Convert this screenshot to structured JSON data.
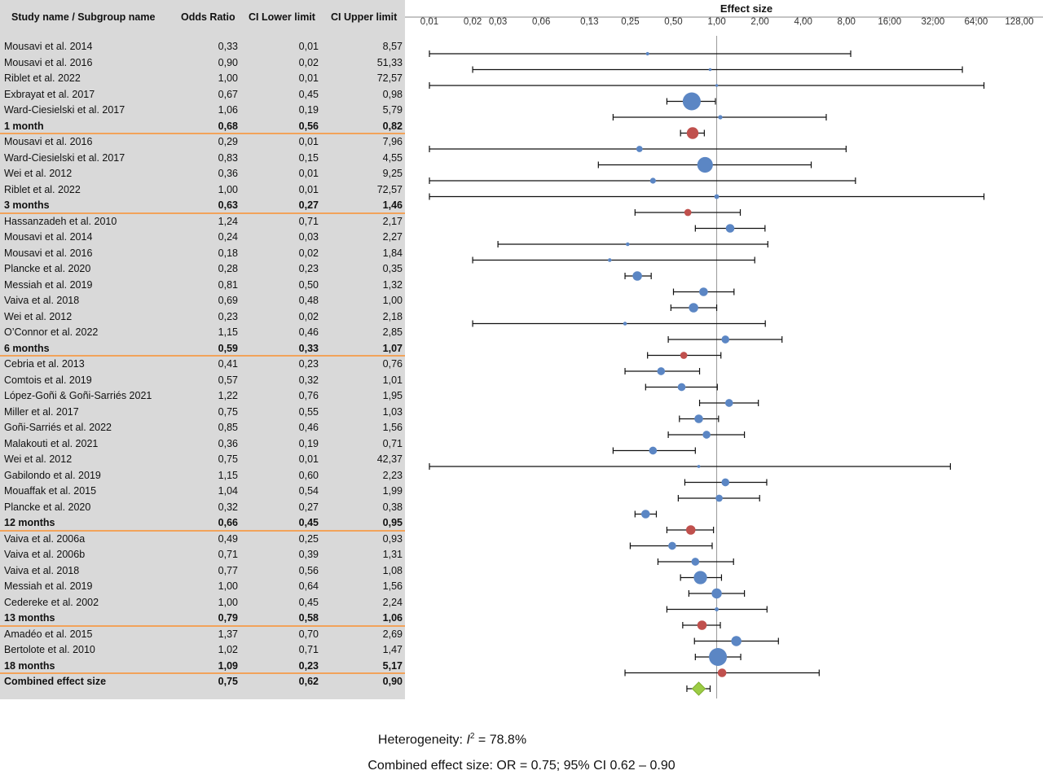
{
  "table": {
    "headers": [
      "Study name / Subgroup name",
      "Odds Ratio",
      "CI Lower limit",
      "CI Upper limit"
    ],
    "rows": [
      {
        "name": "Mousavi et al. 2014",
        "or": "0,33",
        "lo": "0,01",
        "hi": "8,57",
        "kind": "study"
      },
      {
        "name": "Mousavi et al. 2016",
        "or": "0,90",
        "lo": "0,02",
        "hi": "51,33",
        "kind": "study"
      },
      {
        "name": "Riblet et al. 2022",
        "or": "1,00",
        "lo": "0,01",
        "hi": "72,57",
        "kind": "study"
      },
      {
        "name": "Exbrayat et al. 2017",
        "or": "0,67",
        "lo": "0,45",
        "hi": "0,98",
        "kind": "study"
      },
      {
        "name": "Ward-Ciesielski et al. 2017",
        "or": "1,06",
        "lo": "0,19",
        "hi": "5,79",
        "kind": "study"
      },
      {
        "name": "1 month",
        "or": "0,68",
        "lo": "0,56",
        "hi": "0,82",
        "kind": "subgroup"
      },
      {
        "name": "Mousavi et al. 2016",
        "or": "0,29",
        "lo": "0,01",
        "hi": "7,96",
        "kind": "study"
      },
      {
        "name": "Ward-Ciesielski et al. 2017",
        "or": "0,83",
        "lo": "0,15",
        "hi": "4,55",
        "kind": "study"
      },
      {
        "name": "Wei et al. 2012",
        "or": "0,36",
        "lo": "0,01",
        "hi": "9,25",
        "kind": "study"
      },
      {
        "name": "Riblet et al. 2022",
        "or": "1,00",
        "lo": "0,01",
        "hi": "72,57",
        "kind": "study"
      },
      {
        "name": "3 months",
        "or": "0,63",
        "lo": "0,27",
        "hi": "1,46",
        "kind": "subgroup"
      },
      {
        "name": "Hassanzadeh et al. 2010",
        "or": "1,24",
        "lo": "0,71",
        "hi": "2,17",
        "kind": "study"
      },
      {
        "name": "Mousavi et al. 2014",
        "or": "0,24",
        "lo": "0,03",
        "hi": "2,27",
        "kind": "study"
      },
      {
        "name": "Mousavi et al. 2016",
        "or": "0,18",
        "lo": "0,02",
        "hi": "1,84",
        "kind": "study"
      },
      {
        "name": "Plancke et al. 2020",
        "or": "0,28",
        "lo": "0,23",
        "hi": "0,35",
        "kind": "study"
      },
      {
        "name": "Messiah et al. 2019",
        "or": "0,81",
        "lo": "0,50",
        "hi": "1,32",
        "kind": "study"
      },
      {
        "name": "Vaiva et al. 2018",
        "or": "0,69",
        "lo": "0,48",
        "hi": "1,00",
        "kind": "study"
      },
      {
        "name": "Wei et al. 2012",
        "or": "0,23",
        "lo": "0,02",
        "hi": "2,18",
        "kind": "study"
      },
      {
        "name": "O’Connor et al. 2022",
        "or": "1,15",
        "lo": "0,46",
        "hi": "2,85",
        "kind": "study"
      },
      {
        "name": "6 months",
        "or": "0,59",
        "lo": "0,33",
        "hi": "1,07",
        "kind": "subgroup"
      },
      {
        "name": "Cebria et al. 2013",
        "or": "0,41",
        "lo": "0,23",
        "hi": "0,76",
        "kind": "study"
      },
      {
        "name": "Comtois et al. 2019",
        "or": "0,57",
        "lo": "0,32",
        "hi": "1,01",
        "kind": "study"
      },
      {
        "name": "López-Goñi & Goñi-Sarriés 2021",
        "or": "1,22",
        "lo": "0,76",
        "hi": "1,95",
        "kind": "study"
      },
      {
        "name": "Miller et al. 2017",
        "or": "0,75",
        "lo": "0,55",
        "hi": "1,03",
        "kind": "study"
      },
      {
        "name": "Goñi-Sarriés et al. 2022",
        "or": "0,85",
        "lo": "0,46",
        "hi": "1,56",
        "kind": "study"
      },
      {
        "name": "Malakouti et al. 2021",
        "or": "0,36",
        "lo": "0,19",
        "hi": "0,71",
        "kind": "study"
      },
      {
        "name": "Wei et al. 2012",
        "or": "0,75",
        "lo": "0,01",
        "hi": "42,37",
        "kind": "study"
      },
      {
        "name": "Gabilondo et al. 2019",
        "or": "1,15",
        "lo": "0,60",
        "hi": "2,23",
        "kind": "study"
      },
      {
        "name": "Mouaffak et al. 2015",
        "or": "1,04",
        "lo": "0,54",
        "hi": "1,99",
        "kind": "study"
      },
      {
        "name": "Plancke et al. 2020",
        "or": "0,32",
        "lo": "0,27",
        "hi": "0,38",
        "kind": "study"
      },
      {
        "name": "12 months",
        "or": "0,66",
        "lo": "0,45",
        "hi": "0,95",
        "kind": "subgroup"
      },
      {
        "name": "Vaiva et al. 2006a",
        "or": "0,49",
        "lo": "0,25",
        "hi": "0,93",
        "kind": "study"
      },
      {
        "name": "Vaiva et al. 2006b",
        "or": "0,71",
        "lo": "0,39",
        "hi": "1,31",
        "kind": "study"
      },
      {
        "name": "Vaiva et al. 2018",
        "or": "0,77",
        "lo": "0,56",
        "hi": "1,08",
        "kind": "study"
      },
      {
        "name": "Messiah et al. 2019",
        "or": "1,00",
        "lo": "0,64",
        "hi": "1,56",
        "kind": "study"
      },
      {
        "name": "Cedereke et al. 2002",
        "or": "1,00",
        "lo": "0,45",
        "hi": "2,24",
        "kind": "study"
      },
      {
        "name": "13 months",
        "or": "0,79",
        "lo": "0,58",
        "hi": "1,06",
        "kind": "subgroup"
      },
      {
        "name": "Amadéo et al. 2015",
        "or": "1,37",
        "lo": "0,70",
        "hi": "2,69",
        "kind": "study"
      },
      {
        "name": "Bertolote et al. 2010",
        "or": "1,02",
        "lo": "0,71",
        "hi": "1,47",
        "kind": "study"
      },
      {
        "name": "18 months",
        "or": "1,09",
        "lo": "0,23",
        "hi": "5,17",
        "kind": "subgroup"
      },
      {
        "name": "Combined effect size",
        "or": "0,75",
        "lo": "0,62",
        "hi": "0,90",
        "kind": "combined"
      }
    ]
  },
  "chart_data": {
    "type": "forest",
    "title": "Effect size",
    "x_scale": "log2",
    "xlim": [
      0.01,
      128
    ],
    "x_ticks": [
      0.01,
      0.02,
      0.03,
      0.06,
      0.13,
      0.25,
      0.5,
      1,
      2,
      4,
      8,
      16,
      32,
      64,
      128
    ],
    "x_tick_labels": [
      "0,01",
      "0,02",
      "0,03",
      "0,06",
      "0,13",
      "0,25",
      "0,50",
      "1,00",
      "2,00",
      "4,00",
      "8,00",
      "16,00",
      "32,00",
      "64,00",
      "128,00"
    ],
    "reference_line": 1,
    "colors": {
      "study": "#5b86c4",
      "subgroup": "#c0504d",
      "combined": "#9ccc45",
      "ci": "#111111",
      "ref": "#999999"
    },
    "points": [
      {
        "or": 0.33,
        "lo": 0.01,
        "hi": 8.57,
        "kind": "study",
        "weight": 0.06
      },
      {
        "or": 0.9,
        "lo": 0.02,
        "hi": 51.33,
        "kind": "study",
        "weight": 0.03
      },
      {
        "or": 1.0,
        "lo": 0.01,
        "hi": 72.57,
        "kind": "study",
        "weight": 0.02
      },
      {
        "or": 0.67,
        "lo": 0.45,
        "hi": 0.98,
        "kind": "study",
        "weight": 1.0
      },
      {
        "or": 1.06,
        "lo": 0.19,
        "hi": 5.79,
        "kind": "study",
        "weight": 0.12
      },
      {
        "or": 0.68,
        "lo": 0.56,
        "hi": 0.82,
        "kind": "subgroup",
        "weight": 0.6
      },
      {
        "or": 0.29,
        "lo": 0.01,
        "hi": 7.96,
        "kind": "study",
        "weight": 0.25
      },
      {
        "or": 0.83,
        "lo": 0.15,
        "hi": 4.55,
        "kind": "study",
        "weight": 0.85
      },
      {
        "or": 0.36,
        "lo": 0.01,
        "hi": 9.25,
        "kind": "study",
        "weight": 0.22
      },
      {
        "or": 1.0,
        "lo": 0.01,
        "hi": 72.57,
        "kind": "study",
        "weight": 0.15
      },
      {
        "or": 0.63,
        "lo": 0.27,
        "hi": 1.46,
        "kind": "subgroup",
        "weight": 0.3
      },
      {
        "or": 1.24,
        "lo": 0.71,
        "hi": 2.17,
        "kind": "study",
        "weight": 0.4
      },
      {
        "or": 0.24,
        "lo": 0.03,
        "hi": 2.27,
        "kind": "study",
        "weight": 0.08
      },
      {
        "or": 0.18,
        "lo": 0.02,
        "hi": 1.84,
        "kind": "study",
        "weight": 0.08
      },
      {
        "or": 0.28,
        "lo": 0.23,
        "hi": 0.35,
        "kind": "study",
        "weight": 0.45
      },
      {
        "or": 0.81,
        "lo": 0.5,
        "hi": 1.32,
        "kind": "study",
        "weight": 0.4
      },
      {
        "or": 0.69,
        "lo": 0.48,
        "hi": 1.0,
        "kind": "study",
        "weight": 0.45
      },
      {
        "or": 0.23,
        "lo": 0.02,
        "hi": 2.18,
        "kind": "study",
        "weight": 0.08
      },
      {
        "or": 1.15,
        "lo": 0.46,
        "hi": 2.85,
        "kind": "study",
        "weight": 0.35
      },
      {
        "or": 0.59,
        "lo": 0.33,
        "hi": 1.07,
        "kind": "subgroup",
        "weight": 0.3
      },
      {
        "or": 0.41,
        "lo": 0.23,
        "hi": 0.76,
        "kind": "study",
        "weight": 0.35
      },
      {
        "or": 0.57,
        "lo": 0.32,
        "hi": 1.01,
        "kind": "study",
        "weight": 0.35
      },
      {
        "or": 1.22,
        "lo": 0.76,
        "hi": 1.95,
        "kind": "study",
        "weight": 0.35
      },
      {
        "or": 0.75,
        "lo": 0.55,
        "hi": 1.03,
        "kind": "study",
        "weight": 0.4
      },
      {
        "or": 0.85,
        "lo": 0.46,
        "hi": 1.56,
        "kind": "study",
        "weight": 0.35
      },
      {
        "or": 0.36,
        "lo": 0.19,
        "hi": 0.71,
        "kind": "study",
        "weight": 0.35
      },
      {
        "or": 0.75,
        "lo": 0.01,
        "hi": 42.37,
        "kind": "study",
        "weight": 0.04
      },
      {
        "or": 1.15,
        "lo": 0.6,
        "hi": 2.23,
        "kind": "study",
        "weight": 0.35
      },
      {
        "or": 1.04,
        "lo": 0.54,
        "hi": 1.99,
        "kind": "study",
        "weight": 0.3
      },
      {
        "or": 0.32,
        "lo": 0.27,
        "hi": 0.38,
        "kind": "study",
        "weight": 0.4
      },
      {
        "or": 0.66,
        "lo": 0.45,
        "hi": 0.95,
        "kind": "subgroup",
        "weight": 0.45
      },
      {
        "or": 0.49,
        "lo": 0.25,
        "hi": 0.93,
        "kind": "study",
        "weight": 0.35
      },
      {
        "or": 0.71,
        "lo": 0.39,
        "hi": 1.31,
        "kind": "study",
        "weight": 0.35
      },
      {
        "or": 0.77,
        "lo": 0.56,
        "hi": 1.08,
        "kind": "study",
        "weight": 0.7
      },
      {
        "or": 1.0,
        "lo": 0.64,
        "hi": 1.56,
        "kind": "study",
        "weight": 0.5
      },
      {
        "or": 1.0,
        "lo": 0.45,
        "hi": 2.24,
        "kind": "study",
        "weight": 0.1
      },
      {
        "or": 0.79,
        "lo": 0.58,
        "hi": 1.06,
        "kind": "subgroup",
        "weight": 0.45
      },
      {
        "or": 1.37,
        "lo": 0.7,
        "hi": 2.69,
        "kind": "study",
        "weight": 0.5
      },
      {
        "or": 1.02,
        "lo": 0.71,
        "hi": 1.47,
        "kind": "study",
        "weight": 1.0
      },
      {
        "or": 1.09,
        "lo": 0.23,
        "hi": 5.17,
        "kind": "subgroup",
        "weight": 0.4
      },
      {
        "or": 0.75,
        "lo": 0.62,
        "hi": 0.9,
        "kind": "combined",
        "weight": 0.5
      }
    ]
  },
  "footer": {
    "heterogeneity_prefix": "Heterogeneity: ",
    "heterogeneity_symbol": "I",
    "heterogeneity_sup": "2",
    "heterogeneity_value": " = 78.8%",
    "combined": "Combined effect size: OR = 0.75; 95% CI 0.62 – 0.90"
  }
}
